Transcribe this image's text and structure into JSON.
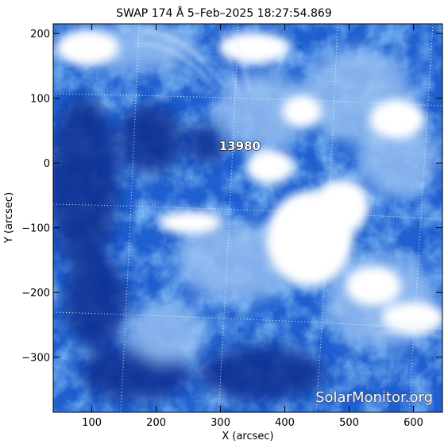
{
  "title": "SWAP 174 Å  5–Feb–2025 18:27:54.869",
  "x_axis": {
    "label": "X (arcsec)",
    "range": [
      40,
      645
    ],
    "ticks": [
      "100",
      "200",
      "300",
      "400",
      "500",
      "600"
    ],
    "tick_values": [
      100,
      200,
      300,
      400,
      500,
      600
    ]
  },
  "y_axis": {
    "label": "Y (arcsec)",
    "range": [
      -385,
      215
    ],
    "ticks": [
      "200",
      "100",
      "0",
      "−100",
      "−200",
      "−300"
    ],
    "tick_values": [
      200,
      100,
      0,
      -100,
      -200,
      -300
    ]
  },
  "active_region": {
    "label": "13980",
    "x": 330,
    "y": 20
  },
  "watermark": "SolarMonitor.org",
  "colors": {
    "dark_blue": "#0b2f8f",
    "mid_blue": "#2f6fd6",
    "light_blue": "#9cc4f3",
    "white": "#ffffff",
    "grid": "#ffffff"
  },
  "grid": "on"
}
